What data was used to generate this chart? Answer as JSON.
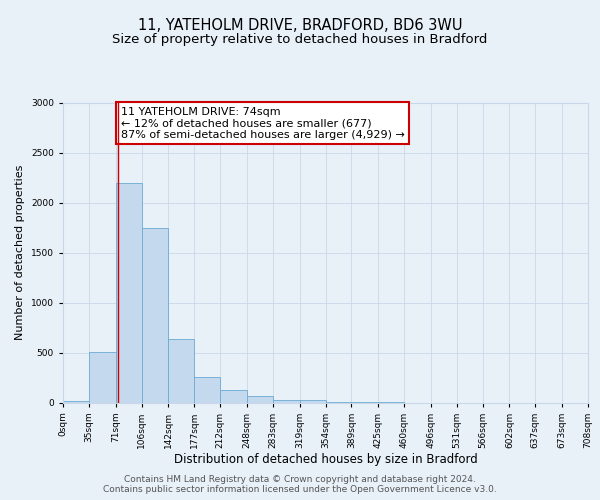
{
  "title_line1": "11, YATEHOLM DRIVE, BRADFORD, BD6 3WU",
  "title_line2": "Size of property relative to detached houses in Bradford",
  "xlabel": "Distribution of detached houses by size in Bradford",
  "ylabel": "Number of detached properties",
  "bin_edges": [
    0,
    35,
    71,
    106,
    142,
    177,
    212,
    248,
    283,
    319,
    354,
    389,
    425,
    460,
    496,
    531,
    566,
    602,
    637,
    673,
    708
  ],
  "bin_heights": [
    20,
    510,
    2200,
    1750,
    640,
    260,
    130,
    70,
    30,
    25,
    5,
    2,
    1,
    0,
    0,
    0,
    0,
    0,
    0,
    0
  ],
  "bar_color": "#c5d9ee",
  "bar_edgecolor": "#6aaad4",
  "property_size": 74,
  "vline_color": "#cc0000",
  "annotation_text": "11 YATEHOLM DRIVE: 74sqm\n← 12% of detached houses are smaller (677)\n87% of semi-detached houses are larger (4,929) →",
  "annotation_box_edgecolor": "#cc0000",
  "annotation_box_facecolor": "#ffffff",
  "ylim": [
    0,
    3000
  ],
  "yticks": [
    0,
    500,
    1000,
    1500,
    2000,
    2500,
    3000
  ],
  "xtick_labels": [
    "0sqm",
    "35sqm",
    "71sqm",
    "106sqm",
    "142sqm",
    "177sqm",
    "212sqm",
    "248sqm",
    "283sqm",
    "319sqm",
    "354sqm",
    "389sqm",
    "425sqm",
    "460sqm",
    "496sqm",
    "531sqm",
    "566sqm",
    "602sqm",
    "637sqm",
    "673sqm",
    "708sqm"
  ],
  "grid_color": "#c8d8e8",
  "background_color": "#e8f0f8",
  "plot_bg_color": "#e8f0f8",
  "footer_text": "Contains HM Land Registry data © Crown copyright and database right 2024.\nContains public sector information licensed under the Open Government Licence v3.0.",
  "title_fontsize": 10.5,
  "subtitle_fontsize": 9.5,
  "xlabel_fontsize": 8.5,
  "ylabel_fontsize": 8,
  "tick_fontsize": 6.5,
  "annotation_fontsize": 8,
  "footer_fontsize": 6.5
}
